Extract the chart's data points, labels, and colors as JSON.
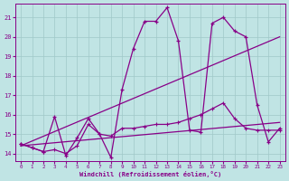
{
  "xlabel": "Windchill (Refroidissement éolien,°C)",
  "xlim": [
    -0.5,
    23.5
  ],
  "ylim": [
    13.6,
    21.7
  ],
  "xticks": [
    0,
    1,
    2,
    3,
    4,
    5,
    6,
    7,
    8,
    9,
    10,
    11,
    12,
    13,
    14,
    15,
    16,
    17,
    18,
    19,
    20,
    21,
    22,
    23
  ],
  "yticks": [
    14,
    15,
    16,
    17,
    18,
    19,
    20,
    21
  ],
  "bg_color": "#c0e4e4",
  "grid_color": "#a0c8c8",
  "line_color": "#880088",
  "line1_x": [
    0,
    1,
    2,
    3,
    4,
    5,
    6,
    7,
    8,
    9,
    10,
    11,
    12,
    13,
    14,
    15,
    16,
    17,
    18,
    19,
    20,
    21,
    22,
    23
  ],
  "line1_y": [
    14.5,
    14.3,
    14.1,
    15.9,
    13.9,
    14.8,
    15.8,
    15.0,
    13.8,
    17.3,
    19.4,
    20.8,
    20.8,
    21.5,
    19.8,
    15.2,
    15.1,
    20.7,
    21.0,
    20.3,
    20.0,
    16.5,
    14.6,
    15.3
  ],
  "line2_x": [
    0,
    1,
    2,
    3,
    4,
    5,
    6,
    7,
    8,
    9,
    10,
    11,
    12,
    13,
    14,
    15,
    16,
    17,
    18,
    19,
    20,
    21,
    22,
    23
  ],
  "line2_y": [
    14.5,
    14.3,
    14.1,
    14.2,
    14.0,
    14.4,
    15.5,
    15.0,
    14.9,
    15.3,
    15.3,
    15.4,
    15.5,
    15.5,
    15.6,
    15.8,
    16.0,
    16.3,
    16.6,
    15.8,
    15.3,
    15.2,
    15.2,
    15.2
  ],
  "line3_x": [
    0,
    23
  ],
  "line3_y": [
    14.4,
    20.0
  ],
  "line4_x": [
    0,
    23
  ],
  "line4_y": [
    14.4,
    15.6
  ]
}
